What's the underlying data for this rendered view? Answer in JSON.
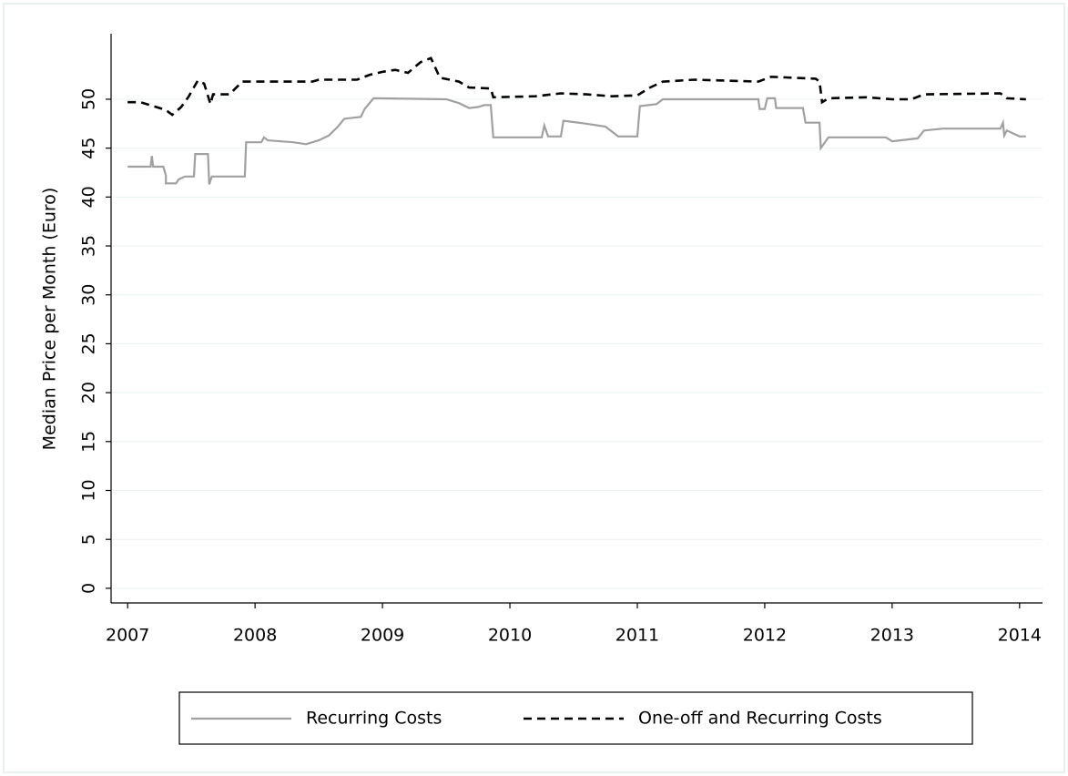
{
  "chart_data": {
    "type": "line",
    "y_label": "Median Price per Month (Euro)",
    "xlim": [
      2006.87,
      2014.18
    ],
    "ylim": [
      -1.5,
      56.7
    ],
    "xticks": [
      2007,
      2008,
      2009,
      2010,
      2011,
      2012,
      2013,
      2014
    ],
    "yticks": [
      0,
      5,
      10,
      15,
      20,
      25,
      30,
      35,
      40,
      45,
      50
    ],
    "grid": true,
    "legend": "bottom",
    "series": [
      {
        "name": "Recurring Costs",
        "color": "#a0a0a0",
        "dash": false,
        "x": [
          2007.0,
          2007.18,
          2007.19,
          2007.2,
          2007.28,
          2007.3,
          2007.3,
          2007.38,
          2007.4,
          2007.45,
          2007.52,
          2007.53,
          2007.63,
          2007.64,
          2007.66,
          2007.92,
          2007.93,
          2008.05,
          2008.07,
          2008.1,
          2008.3,
          2008.4,
          2008.5,
          2008.58,
          2008.65,
          2008.7,
          2008.83,
          2008.86,
          2008.93,
          2009.5,
          2009.6,
          2009.68,
          2009.75,
          2009.8,
          2009.85,
          2009.87,
          2010.25,
          2010.27,
          2010.3,
          2010.4,
          2010.42,
          2010.6,
          2010.75,
          2010.85,
          2011.0,
          2011.02,
          2011.15,
          2011.2,
          2011.95,
          2011.96,
          2012.0,
          2012.02,
          2012.08,
          2012.09,
          2012.3,
          2012.32,
          2012.43,
          2012.44,
          2012.5,
          2012.95,
          2013.0,
          2013.2,
          2013.25,
          2013.4,
          2013.85,
          2013.87,
          2013.88,
          2013.9,
          2014.0,
          2014.05
        ],
        "values": [
          43.1,
          43.1,
          44.2,
          43.1,
          43.1,
          42.2,
          41.4,
          41.4,
          41.8,
          42.1,
          42.1,
          44.4,
          44.4,
          41.3,
          42.1,
          42.1,
          45.6,
          45.6,
          46.1,
          45.8,
          45.6,
          45.4,
          45.8,
          46.3,
          47.2,
          48,
          48.2,
          49,
          50.1,
          50,
          49.6,
          49.1,
          49.2,
          49.4,
          49.4,
          46.1,
          46.1,
          47.3,
          46.2,
          46.2,
          47.8,
          47.5,
          47.2,
          46.2,
          46.2,
          49.3,
          49.5,
          50,
          50,
          49,
          49,
          50.1,
          50.1,
          49.1,
          49.1,
          47.6,
          47.6,
          45,
          46.1,
          46.1,
          45.7,
          46,
          46.8,
          47,
          47,
          47.6,
          46.3,
          46.8,
          46.2,
          46.2
        ]
      },
      {
        "name": "One-off and Recurring Costs",
        "color": "#000000",
        "dash": true,
        "x": [
          2007.0,
          2007.1,
          2007.2,
          2007.3,
          2007.35,
          2007.42,
          2007.48,
          2007.55,
          2007.6,
          2007.65,
          2007.67,
          2007.8,
          2007.9,
          2008.3,
          2008.45,
          2008.5,
          2008.8,
          2008.9,
          2009.0,
          2009.1,
          2009.2,
          2009.3,
          2009.38,
          2009.45,
          2009.6,
          2009.68,
          2009.85,
          2009.87,
          2010.2,
          2010.4,
          2010.6,
          2010.8,
          2011.0,
          2011.1,
          2011.2,
          2011.45,
          2011.95,
          2012.05,
          2012.4,
          2012.43,
          2012.45,
          2012.5,
          2012.8,
          2013.0,
          2013.15,
          2013.25,
          2013.85,
          2013.9,
          2014.05
        ],
        "values": [
          49.7,
          49.7,
          49.3,
          48.9,
          48.4,
          49.2,
          50.3,
          51.9,
          51.6,
          49.5,
          50.5,
          50.5,
          51.8,
          51.8,
          51.8,
          52,
          52,
          52.5,
          52.8,
          53,
          52.7,
          53.8,
          54.2,
          52.2,
          51.8,
          51.2,
          51.1,
          50.2,
          50.3,
          50.6,
          50.5,
          50.3,
          50.4,
          51.2,
          51.8,
          52,
          51.8,
          52.3,
          52.1,
          51.8,
          49.7,
          50.1,
          50.2,
          50,
          50,
          50.5,
          50.6,
          50.1,
          50
        ]
      }
    ]
  }
}
